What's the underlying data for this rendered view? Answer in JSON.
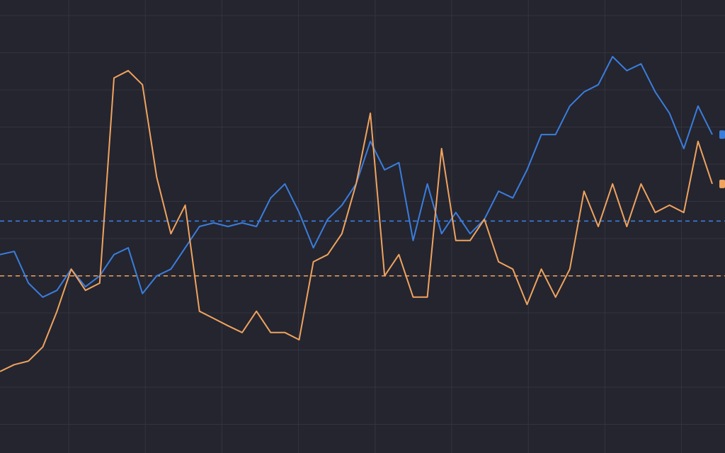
{
  "chart_data": {
    "type": "line",
    "ylim": [
      0,
      100
    ],
    "grid": true,
    "series": [
      {
        "color": "#3b7ddd",
        "values": [
          43.8,
          44.5,
          37.5,
          34.4,
          35.9,
          40.6,
          36.7,
          39.1,
          43.8,
          45.3,
          35.2,
          39.1,
          40.6,
          45.3,
          50,
          50.8,
          50,
          50.8,
          50,
          56.3,
          59.4,
          53.1,
          45.3,
          51.6,
          54.7,
          59.4,
          68.8,
          62.5,
          64.1,
          46.9,
          59.4,
          48.4,
          53.1,
          48.4,
          51.6,
          57.8,
          56.3,
          62.5,
          70.3,
          70.3,
          76.6,
          79.7,
          81.3,
          87.5,
          84.4,
          85.9,
          79.7,
          75,
          67.2,
          76.6,
          70.3
        ]
      },
      {
        "color": "#f0a35e",
        "values": [
          18,
          19.5,
          20.3,
          23.4,
          31.3,
          40.6,
          35.9,
          37.5,
          82.8,
          84.4,
          81.3,
          60.9,
          48.4,
          54.7,
          31.3,
          29.7,
          28.1,
          26.6,
          31.3,
          26.6,
          26.6,
          25,
          42.2,
          43.8,
          48.4,
          59.4,
          75,
          39.1,
          43.8,
          34.4,
          34.4,
          67.2,
          46.9,
          46.9,
          51.6,
          42.2,
          40.6,
          32.8,
          40.6,
          34.4,
          40.6,
          57.8,
          50,
          59.4,
          50,
          59.4,
          53.1,
          54.7,
          53.1,
          68.8,
          59.4
        ]
      }
    ],
    "hlines": [
      {
        "value": 51.2,
        "color": "#3b7ddd"
      },
      {
        "value": 39.1,
        "color": "#f0a35e"
      }
    ]
  }
}
